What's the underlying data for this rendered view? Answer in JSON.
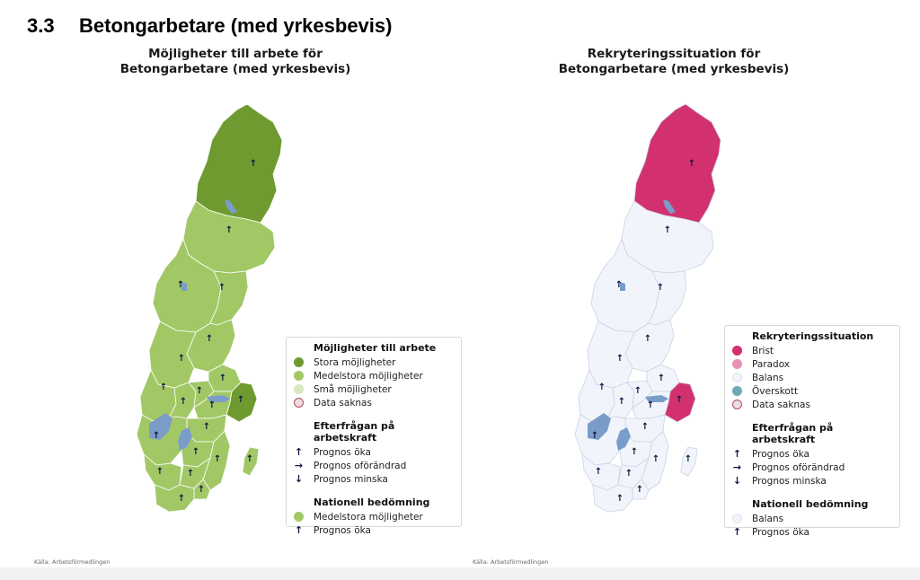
{
  "section": {
    "number": "3.3",
    "title": "Betongarbetare (med yrkesbevis)"
  },
  "left": {
    "title": "Möjligheter till arbete för\nBetongarbetare (med yrkesbevis)",
    "title_line1": "Möjligheter till arbete för",
    "title_line2": "Betongarbetare (med yrkesbevis)",
    "colors": {
      "stora": "#6f9a30",
      "medelstora": "#a2c866",
      "sma": "#d8e8bf",
      "border": "#ffffff",
      "water": "#7a9cc9"
    },
    "legend": {
      "h1": "Möjligheter till arbete",
      "items1": [
        {
          "label": "Stora möjligheter",
          "color": "#6f9a30"
        },
        {
          "label": "Medelstora möjligheter",
          "color": "#a2c866"
        },
        {
          "label": "Små möjligheter",
          "color": "#d8e8bf"
        },
        {
          "label": "Data saknas",
          "color": "#e9dde0"
        }
      ],
      "h2": "Efterfrågan på arbetskraft",
      "items2": [
        {
          "label": "Prognos öka",
          "icon": "arrow-up-icon"
        },
        {
          "label": "Prognos oförändrad",
          "icon": "arrow-right-icon"
        },
        {
          "label": "Prognos minska",
          "icon": "arrow-down-icon"
        }
      ],
      "h3": "Nationell bedömning",
      "items3": [
        {
          "label": "Medelstora möjligheter",
          "color": "#a2c866"
        },
        {
          "label": "Prognos öka",
          "icon": "arrow-up-icon"
        }
      ]
    },
    "source": "Källa: Arbetsförmedlingen"
  },
  "right": {
    "title_line1": "Rekryteringssituation för",
    "title_line2": "Betongarbetare (med yrkesbevis)",
    "colors": {
      "brist": "#d3306f",
      "paradox": "#e891b4",
      "balans": "#f1f5fb",
      "overskott": "#6fa8b3",
      "border": "#c9d3e6",
      "water": "#7a9cc9"
    },
    "legend": {
      "h1": "Rekryteringssituation",
      "items1": [
        {
          "label": "Brist",
          "color": "#d3306f"
        },
        {
          "label": "Paradox",
          "color": "#e891b4"
        },
        {
          "label": "Balans",
          "color": "#f1f5fb"
        },
        {
          "label": "Överskott",
          "color": "#6fa8b3"
        },
        {
          "label": "Data saknas",
          "color": "#e9dde0"
        }
      ],
      "h2": "Efterfrågan på arbetskraft",
      "items2": [
        {
          "label": "Prognos öka",
          "icon": "arrow-up-icon"
        },
        {
          "label": "Prognos oförändrad",
          "icon": "arrow-right-icon"
        },
        {
          "label": "Prognos minska",
          "icon": "arrow-down-icon"
        }
      ],
      "h3": "Nationell bedömning",
      "items3": [
        {
          "label": "Balans",
          "color": "#f1f5fb"
        },
        {
          "label": "Prognos öka",
          "icon": "arrow-up-icon"
        }
      ]
    },
    "source": "Källa: Arbetsförmedlingen"
  },
  "regions": [
    {
      "name": "Norrbotten",
      "left_class": "stora",
      "right_class": "brist",
      "trend": "up"
    },
    {
      "name": "Västerbotten",
      "left_class": "medelstora",
      "right_class": "balans",
      "trend": "up"
    },
    {
      "name": "Jämtland",
      "left_class": "medelstora",
      "right_class": "balans",
      "trend": "up"
    },
    {
      "name": "Västernorrland",
      "left_class": "medelstora",
      "right_class": "balans",
      "trend": "up"
    },
    {
      "name": "Gävleborg",
      "left_class": "medelstora",
      "right_class": "balans",
      "trend": "up"
    },
    {
      "name": "Dalarna",
      "left_class": "medelstora",
      "right_class": "balans",
      "trend": "up"
    },
    {
      "name": "Värmland",
      "left_class": "medelstora",
      "right_class": "balans",
      "trend": "up"
    },
    {
      "name": "Örebro",
      "left_class": "medelstora",
      "right_class": "balans",
      "trend": "up"
    },
    {
      "name": "Västmanland",
      "left_class": "medelstora",
      "right_class": "balans",
      "trend": "up"
    },
    {
      "name": "Uppsala",
      "left_class": "medelstora",
      "right_class": "balans",
      "trend": "up"
    },
    {
      "name": "Stockholm",
      "left_class": "stora",
      "right_class": "brist",
      "trend": "up"
    },
    {
      "name": "Södermanland",
      "left_class": "medelstora",
      "right_class": "balans",
      "trend": "up"
    },
    {
      "name": "Östergötland",
      "left_class": "medelstora",
      "right_class": "balans",
      "trend": "up"
    },
    {
      "name": "Västra Götaland",
      "left_class": "medelstora",
      "right_class": "balans",
      "trend": "up"
    },
    {
      "name": "Jönköping",
      "left_class": "medelstora",
      "right_class": "balans",
      "trend": "up"
    },
    {
      "name": "Kalmar",
      "left_class": "medelstora",
      "right_class": "balans",
      "trend": "up"
    },
    {
      "name": "Gotland",
      "left_class": "medelstora",
      "right_class": "balans",
      "trend": "up"
    },
    {
      "name": "Kronoberg",
      "left_class": "medelstora",
      "right_class": "balans",
      "trend": "up"
    },
    {
      "name": "Halland",
      "left_class": "medelstora",
      "right_class": "balans",
      "trend": "up"
    },
    {
      "name": "Blekinge",
      "left_class": "medelstora",
      "right_class": "balans",
      "trend": "up"
    },
    {
      "name": "Skåne",
      "left_class": "medelstora",
      "right_class": "balans",
      "trend": "up"
    }
  ]
}
